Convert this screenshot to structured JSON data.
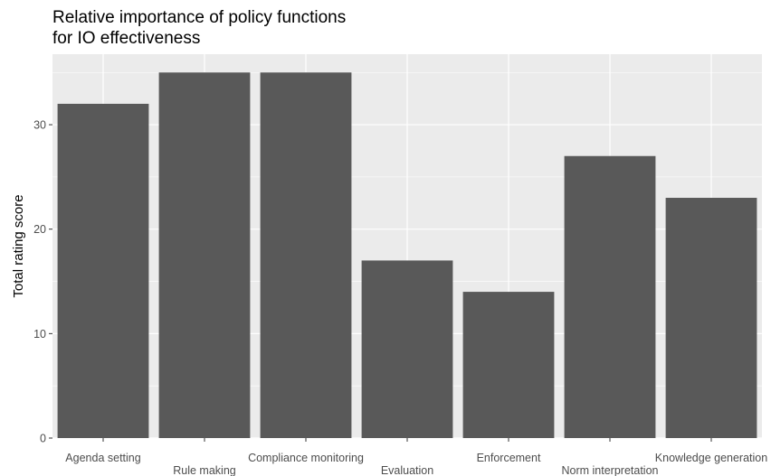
{
  "chart_data": {
    "type": "bar",
    "title": [
      "Relative importance of policy functions",
      "for IO effectiveness"
    ],
    "xlabel": "",
    "ylabel": "Total rating score",
    "categories": [
      "Agenda setting",
      "Rule making",
      "Compliance monitoring",
      "Evaluation",
      "Enforcement",
      "Norm interpretation",
      "Knowledge generation"
    ],
    "values": [
      32,
      35,
      35,
      17,
      14,
      27,
      23
    ],
    "ylim": [
      0,
      36.75
    ],
    "yticks": [
      0,
      10,
      20,
      30
    ],
    "grid": true,
    "legend": "none",
    "colors": {
      "bar": "#595959",
      "panel": "#ebebeb",
      "grid_major": "#ffffff",
      "tick": "#333333",
      "tick_label": "#4d4d4d"
    }
  }
}
